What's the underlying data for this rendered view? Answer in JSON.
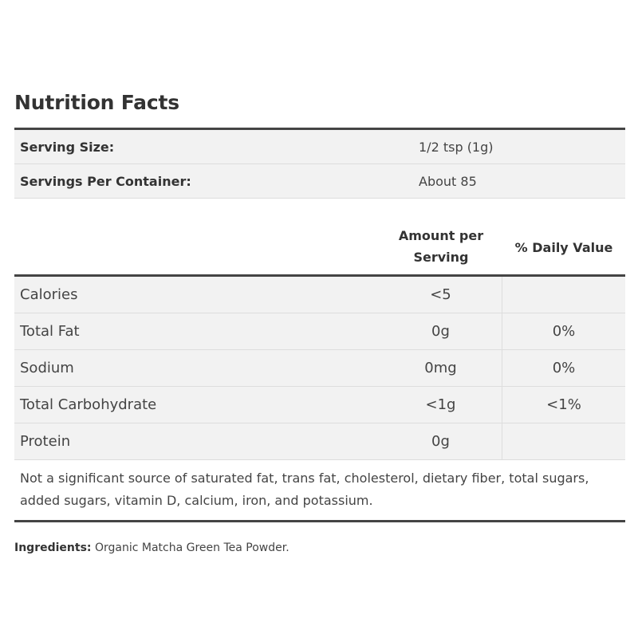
{
  "title": "Nutrition Facts",
  "serving": [
    {
      "label": "Serving Size:",
      "value": "1/2 tsp (1g)"
    },
    {
      "label": "Servings Per Container:",
      "value": "About 85"
    }
  ],
  "headers": {
    "amount_line1": "Amount per",
    "amount_line2": "Serving",
    "daily_value": "% Daily Value"
  },
  "nutrients": [
    {
      "name": "Calories",
      "amount": "<5",
      "dv": ""
    },
    {
      "name": "Total Fat",
      "amount": "0g",
      "dv": "0%"
    },
    {
      "name": "Sodium",
      "amount": "0mg",
      "dv": "0%"
    },
    {
      "name": "Total Carbohydrate",
      "amount": "<1g",
      "dv": "<1%"
    },
    {
      "name": "Protein",
      "amount": "0g",
      "dv": ""
    }
  ],
  "footnote": "Not a significant source of saturated fat, trans fat, cholesterol, dietary fiber, total sugars, added sugars, vitamin D, calcium, iron, and potassium.",
  "ingredients": {
    "label": "Ingredients:",
    "text": "Organic Matcha Green Tea Powder."
  }
}
